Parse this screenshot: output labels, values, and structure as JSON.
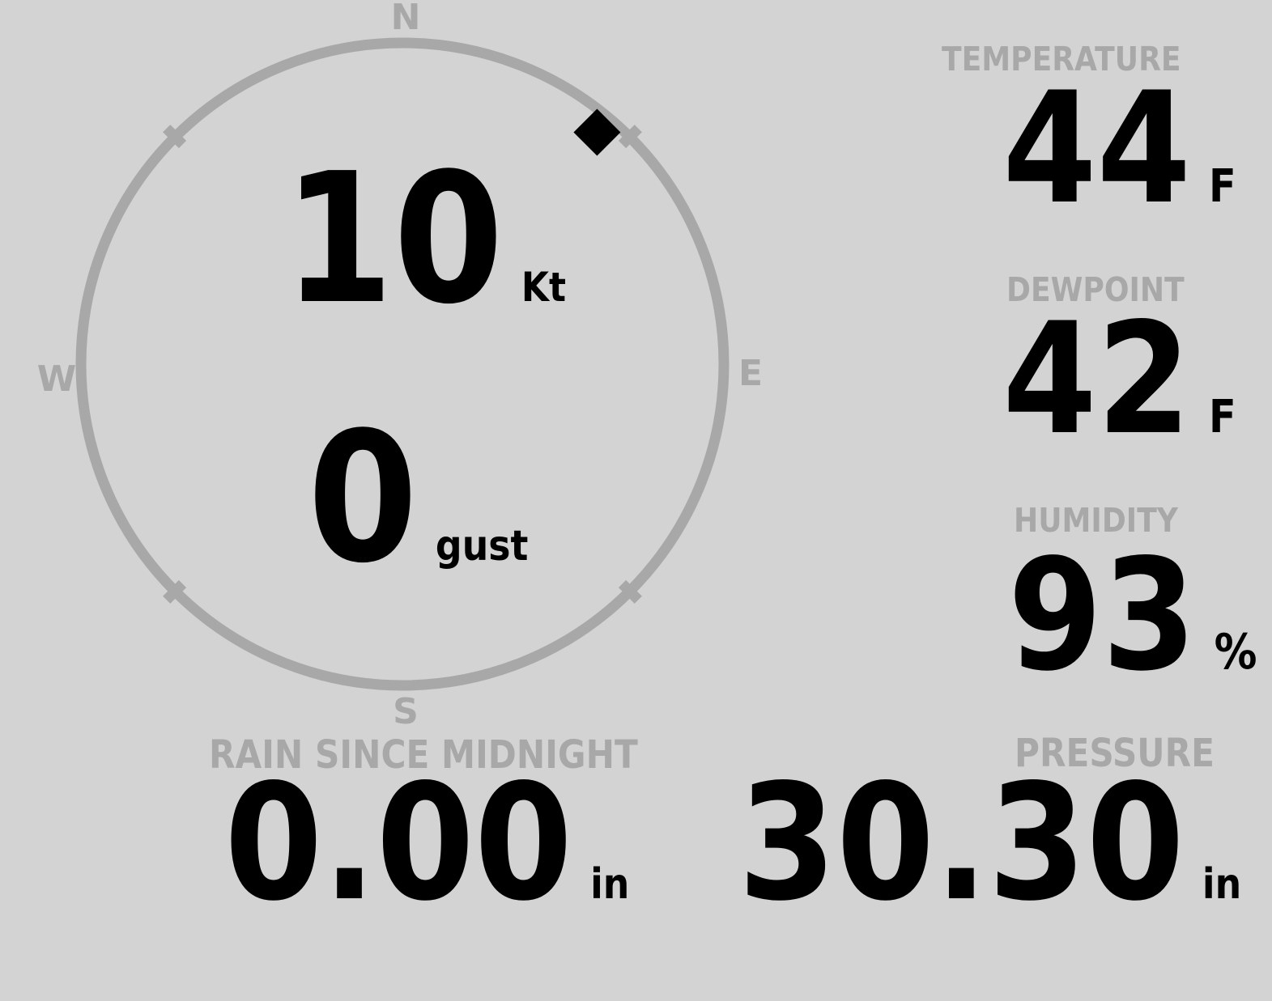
{
  "colors": {
    "background": "#d3d3d3",
    "muted_gray": "#a8a8a8",
    "value_black": "#000000"
  },
  "wind_compass": {
    "cardinals": {
      "north": "N",
      "east": "E",
      "south": "S",
      "west": "W"
    },
    "speed": {
      "value": "10",
      "unit": "Kt"
    },
    "gust": {
      "value": "0",
      "unit": "gust"
    },
    "direction_deg": 40
  },
  "metrics": {
    "temperature": {
      "label": "TEMPERATURE",
      "value": "44",
      "unit": "F"
    },
    "dewpoint": {
      "label": "DEWPOINT",
      "value": "42",
      "unit": "F"
    },
    "humidity": {
      "label": "HUMIDITY",
      "value": "93",
      "unit": "%"
    },
    "rain": {
      "label": "RAIN SINCE MIDNIGHT",
      "value": "0.00",
      "unit": "in"
    },
    "pressure": {
      "label": "PRESSURE",
      "value": "30.30",
      "unit": "in"
    }
  }
}
